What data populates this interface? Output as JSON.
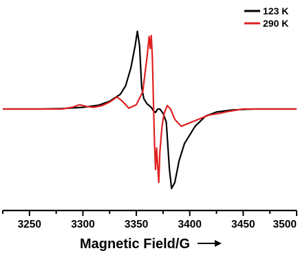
{
  "chart_data": {
    "type": "line",
    "title": "",
    "xlabel": "Magnetic Field/G",
    "ylabel": "",
    "xlim": [
      3225,
      3500
    ],
    "ylim": [
      -1.0,
      1.0
    ],
    "x_ticks": [
      3250,
      3300,
      3350,
      3400,
      3450,
      3500
    ],
    "grid": false,
    "y_axis_visible": false,
    "legend_position": "top-right",
    "series": [
      {
        "name": "123 K",
        "color": "#000000",
        "points": [
          [
            3225,
            0.0
          ],
          [
            3260,
            0.0
          ],
          [
            3280,
            0.005
          ],
          [
            3300,
            0.02
          ],
          [
            3315,
            0.045
          ],
          [
            3325,
            0.09
          ],
          [
            3335,
            0.17
          ],
          [
            3340,
            0.27
          ],
          [
            3345,
            0.48
          ],
          [
            3349,
            0.74
          ],
          [
            3351,
            0.9
          ],
          [
            3353,
            0.74
          ],
          [
            3355,
            0.25
          ],
          [
            3357,
            0.12
          ],
          [
            3360,
            0.06
          ],
          [
            3364,
            0.02
          ],
          [
            3366,
            -0.02
          ],
          [
            3368,
            -0.04
          ],
          [
            3370,
            0.0
          ],
          [
            3372,
            0.0
          ],
          [
            3375,
            -0.05
          ],
          [
            3378,
            -0.15
          ],
          [
            3381,
            -0.7
          ],
          [
            3383,
            -0.92
          ],
          [
            3386,
            -0.85
          ],
          [
            3390,
            -0.6
          ],
          [
            3395,
            -0.4
          ],
          [
            3405,
            -0.2
          ],
          [
            3415,
            -0.08
          ],
          [
            3425,
            -0.035
          ],
          [
            3440,
            -0.01
          ],
          [
            3460,
            0.0
          ],
          [
            3500,
            0.0
          ]
        ]
      },
      {
        "name": "290 K",
        "color": "#e02020",
        "points": [
          [
            3225,
            0.0
          ],
          [
            3280,
            0.0
          ],
          [
            3290,
            0.02
          ],
          [
            3297,
            0.05
          ],
          [
            3303,
            0.03
          ],
          [
            3310,
            0.02
          ],
          [
            3318,
            0.04
          ],
          [
            3325,
            0.08
          ],
          [
            3332,
            0.14
          ],
          [
            3337,
            0.09
          ],
          [
            3343,
            0.01
          ],
          [
            3350,
            0.05
          ],
          [
            3356,
            0.2
          ],
          [
            3360,
            0.6
          ],
          [
            3362,
            0.84
          ],
          [
            3363,
            0.7
          ],
          [
            3364,
            0.85
          ],
          [
            3365,
            0.6
          ],
          [
            3366,
            0.1
          ],
          [
            3367,
            -0.4
          ],
          [
            3368,
            -0.7
          ],
          [
            3369,
            -0.45
          ],
          [
            3370,
            -0.65
          ],
          [
            3371,
            -0.85
          ],
          [
            3372,
            -0.5
          ],
          [
            3374,
            -0.2
          ],
          [
            3376,
            -0.05
          ],
          [
            3379,
            0.04
          ],
          [
            3382,
            0.0
          ],
          [
            3386,
            -0.12
          ],
          [
            3392,
            -0.2
          ],
          [
            3400,
            -0.16
          ],
          [
            3408,
            -0.12
          ],
          [
            3418,
            -0.07
          ],
          [
            3428,
            -0.05
          ],
          [
            3435,
            -0.03
          ],
          [
            3440,
            -0.02
          ],
          [
            3450,
            0.0
          ],
          [
            3500,
            0.0
          ]
        ]
      }
    ]
  }
}
